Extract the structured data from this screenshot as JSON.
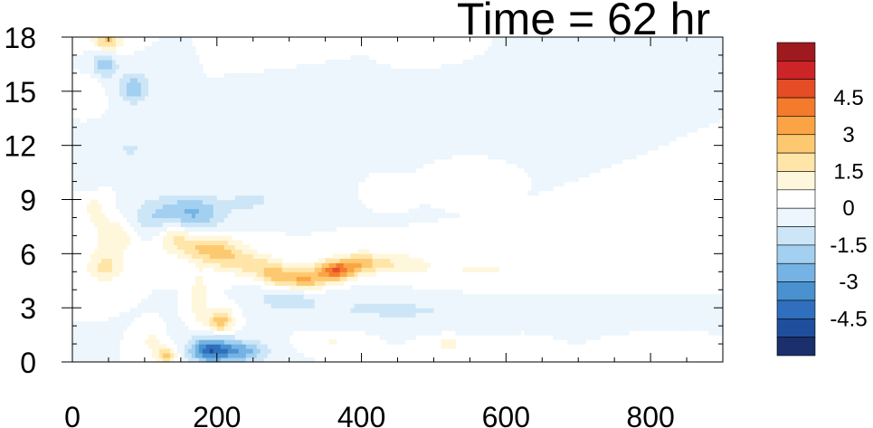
{
  "chart_data": {
    "type": "heatmap",
    "title": "Time = 62 hr",
    "xlabel": "",
    "ylabel": "",
    "xlim": [
      0,
      900
    ],
    "ylim": [
      0,
      18
    ],
    "x_ticks": [
      0,
      200,
      400,
      600,
      800
    ],
    "x_tick_labels": [
      "0",
      "200",
      "400",
      "600",
      "800"
    ],
    "y_ticks": [
      0,
      3,
      6,
      9,
      12,
      15,
      18
    ],
    "y_tick_labels": [
      "0",
      "3",
      "6",
      "9",
      "12",
      "15",
      "18"
    ],
    "colorbar": {
      "levels": [
        -5.25,
        -4.5,
        -3.75,
        -3,
        -2.25,
        -1.5,
        -0.75,
        0,
        0.75,
        1.5,
        2.25,
        3,
        3.75,
        4.5,
        5.25
      ],
      "labels": [
        "4.5",
        "3",
        "1.5",
        "0",
        "-1.5",
        "-3",
        "-4.5"
      ],
      "colors": [
        "#1a2f6b",
        "#1f4e9c",
        "#2f6fbd",
        "#4a91d0",
        "#74b3e3",
        "#a3d0f0",
        "#cde6f7",
        "#ecf6fc",
        "#ffffff",
        "#fff7dc",
        "#ffe6a8",
        "#fdc970",
        "#fba446",
        "#f47a2c",
        "#e54d27",
        "#cc2427",
        "#9e1a1f"
      ]
    },
    "features": [
      {
        "x": 48,
        "y": 17.8,
        "value": 2.5,
        "sx": 14,
        "sy": 0.4
      },
      {
        "x": 45,
        "y": 16.5,
        "value": -2.0,
        "sx": 12,
        "sy": 0.5
      },
      {
        "x": 85,
        "y": 15.2,
        "value": -2.2,
        "sx": 14,
        "sy": 0.6
      },
      {
        "x": 25,
        "y": 15.0,
        "value": 0.8,
        "sx": 10,
        "sy": 0.5
      },
      {
        "x": 30,
        "y": 8.5,
        "value": 0.9,
        "sx": 15,
        "sy": 0.7
      },
      {
        "x": 60,
        "y": 7.0,
        "value": 1.5,
        "sx": 20,
        "sy": 0.7
      },
      {
        "x": 45,
        "y": 5.3,
        "value": 1.7,
        "sx": 18,
        "sy": 0.6
      },
      {
        "x": 130,
        "y": 8.0,
        "value": -1.8,
        "sx": 35,
        "sy": 0.8
      },
      {
        "x": 175,
        "y": 8.3,
        "value": -1.6,
        "sx": 30,
        "sy": 0.7
      },
      {
        "x": 140,
        "y": 7.1,
        "value": 2.0,
        "sx": 18,
        "sy": 0.7
      },
      {
        "x": 180,
        "y": 6.4,
        "value": 2.2,
        "sx": 22,
        "sy": 0.6
      },
      {
        "x": 215,
        "y": 5.9,
        "value": 1.9,
        "sx": 20,
        "sy": 0.6
      },
      {
        "x": 250,
        "y": 5.4,
        "value": 1.6,
        "sx": 18,
        "sy": 0.5
      },
      {
        "x": 280,
        "y": 4.9,
        "value": 2.2,
        "sx": 15,
        "sy": 0.5
      },
      {
        "x": 320,
        "y": 4.6,
        "value": 3.1,
        "sx": 22,
        "sy": 0.45
      },
      {
        "x": 365,
        "y": 5.1,
        "value": 4.2,
        "sx": 18,
        "sy": 0.4
      },
      {
        "x": 400,
        "y": 5.5,
        "value": 2.2,
        "sx": 18,
        "sy": 0.4
      },
      {
        "x": 445,
        "y": 5.5,
        "value": 1.3,
        "sx": 30,
        "sy": 0.4
      },
      {
        "x": 540,
        "y": 5.0,
        "value": 0.6,
        "sx": 60,
        "sy": 0.6
      },
      {
        "x": 660,
        "y": 5.2,
        "value": 0.5,
        "sx": 80,
        "sy": 0.5
      },
      {
        "x": 700,
        "y": 6.3,
        "value": 0.4,
        "sx": 60,
        "sy": 0.4
      },
      {
        "x": 295,
        "y": 3.6,
        "value": -1.2,
        "sx": 30,
        "sy": 0.5
      },
      {
        "x": 420,
        "y": 3.0,
        "value": -0.8,
        "sx": 80,
        "sy": 0.6
      },
      {
        "x": 600,
        "y": 2.6,
        "value": -0.6,
        "sx": 90,
        "sy": 0.5
      },
      {
        "x": 205,
        "y": 2.3,
        "value": 2.8,
        "sx": 12,
        "sy": 0.5
      },
      {
        "x": 175,
        "y": 3.5,
        "value": 1.5,
        "sx": 8,
        "sy": 1.0
      },
      {
        "x": 190,
        "y": 0.7,
        "value": -4.0,
        "sx": 20,
        "sy": 0.5
      },
      {
        "x": 235,
        "y": 0.6,
        "value": -2.5,
        "sx": 25,
        "sy": 0.45
      },
      {
        "x": 130,
        "y": 0.4,
        "value": 2.5,
        "sx": 10,
        "sy": 0.3
      },
      {
        "x": 110,
        "y": 1.1,
        "value": 1.2,
        "sx": 8,
        "sy": 0.4
      },
      {
        "x": 360,
        "y": 1.2,
        "value": 0.8,
        "sx": 25,
        "sy": 0.3
      },
      {
        "x": 520,
        "y": 1.0,
        "value": 0.9,
        "sx": 20,
        "sy": 0.3
      },
      {
        "x": 620,
        "y": 1.0,
        "value": 0.8,
        "sx": 20,
        "sy": 0.3
      },
      {
        "x": 800,
        "y": 0.9,
        "value": 0.5,
        "sx": 30,
        "sy": 0.3
      },
      {
        "x": 360,
        "y": 14.0,
        "value": -0.7,
        "sx": 25,
        "sy": 1.4
      },
      {
        "x": 440,
        "y": 13.0,
        "value": -0.6,
        "sx": 30,
        "sy": 1.2
      },
      {
        "x": 340,
        "y": 17.5,
        "value": 0.6,
        "sx": 25,
        "sy": 0.5
      },
      {
        "x": 460,
        "y": 17.4,
        "value": 0.5,
        "sx": 20,
        "sy": 0.4
      },
      {
        "x": 440,
        "y": 9.8,
        "value": 0.6,
        "sx": 15,
        "sy": 0.4
      },
      {
        "x": 510,
        "y": 10.2,
        "value": 0.5,
        "sx": 18,
        "sy": 0.4
      },
      {
        "x": 250,
        "y": 9.0,
        "value": -0.9,
        "sx": 25,
        "sy": 0.5
      },
      {
        "x": 80,
        "y": 11.8,
        "value": -0.8,
        "sx": 25,
        "sy": 0.7
      },
      {
        "x": 25,
        "y": 10.3,
        "value": -0.7,
        "sx": 15,
        "sy": 0.5
      }
    ]
  }
}
